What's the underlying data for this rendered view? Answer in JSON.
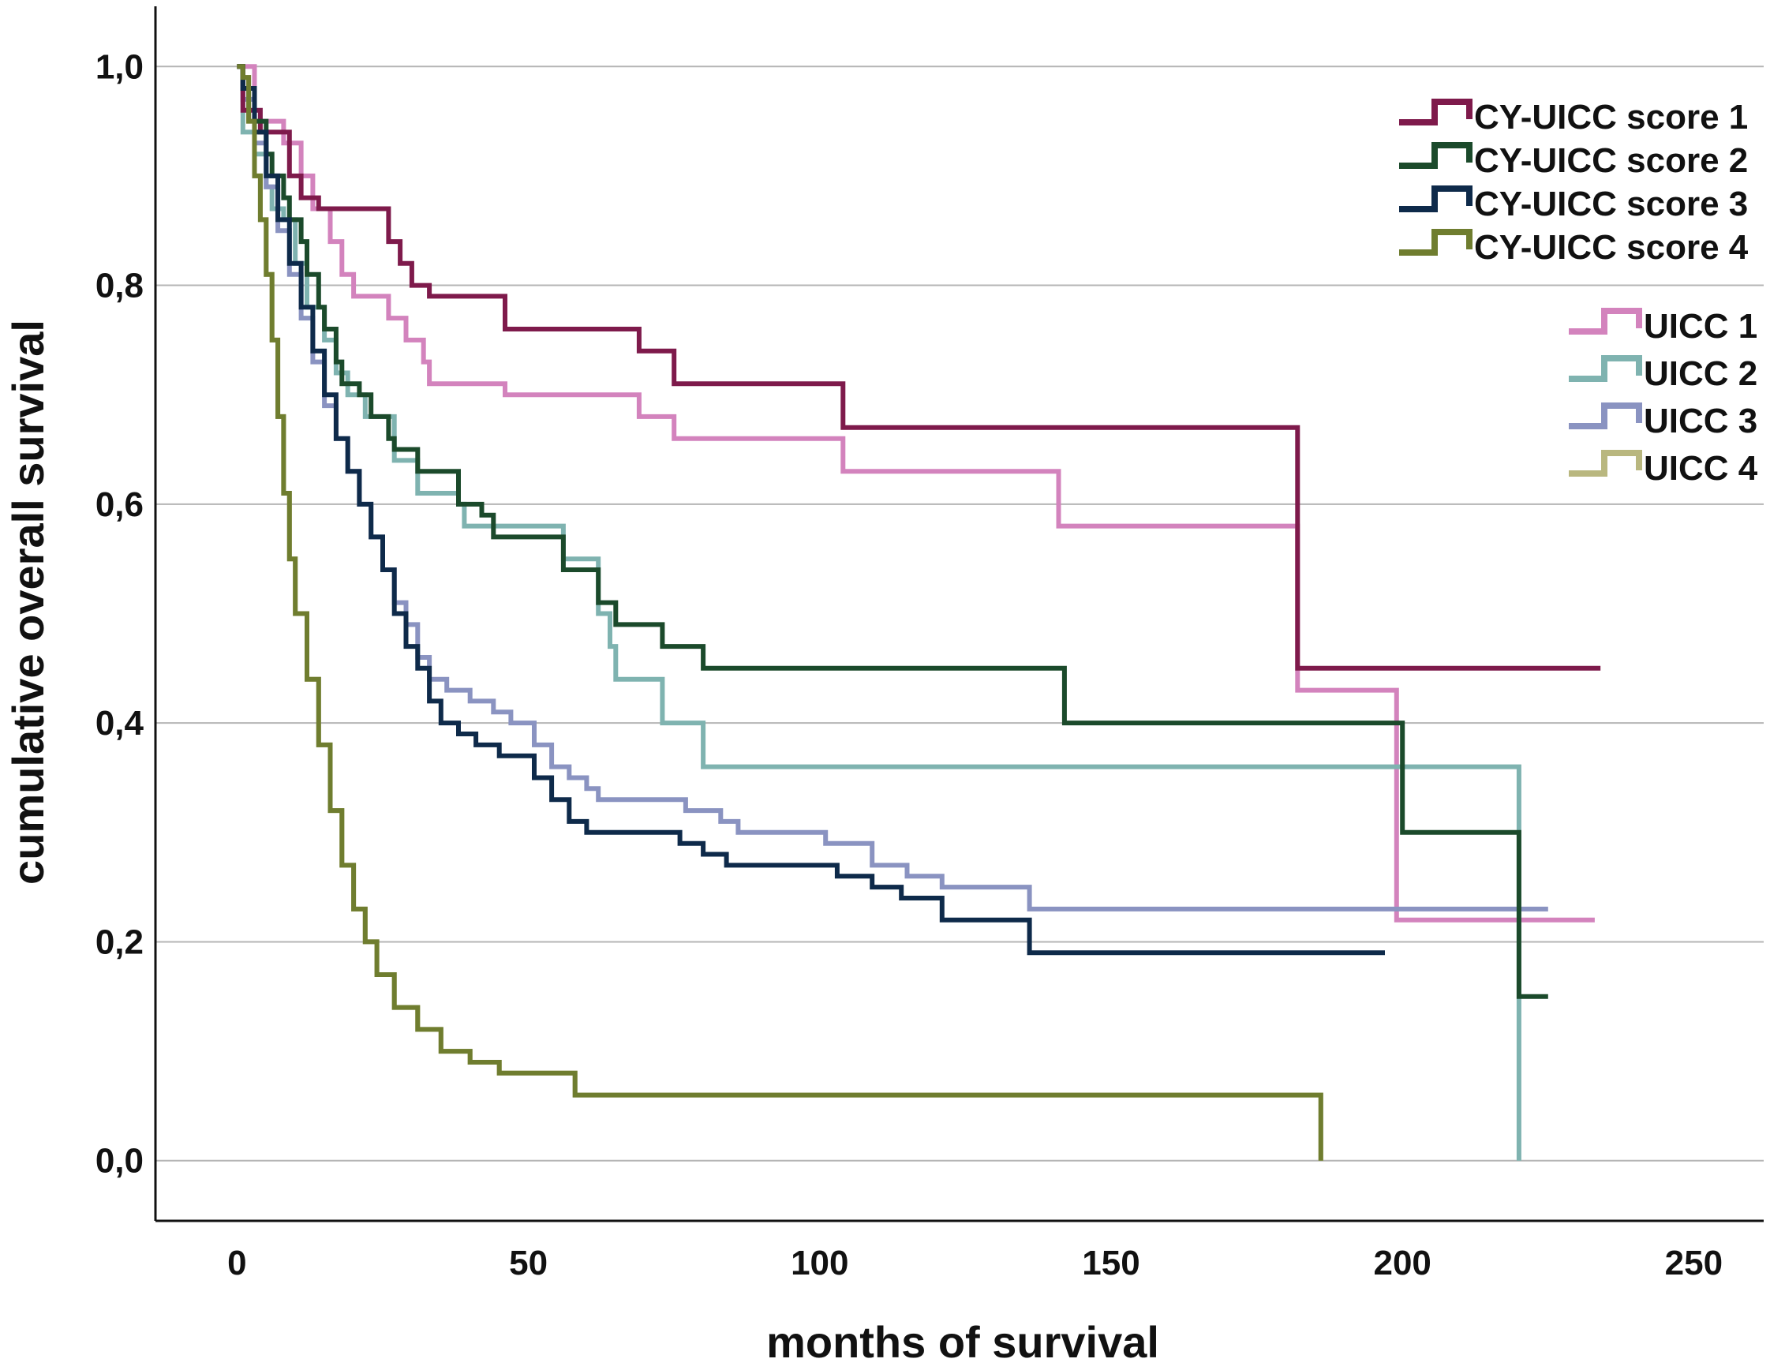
{
  "chart_data": {
    "type": "line",
    "subtype": "kaplan-meier step curves",
    "title": "",
    "xlabel": "months of survival",
    "ylabel": "cumulative overall survival",
    "xlim": [
      -14,
      262
    ],
    "ylim": [
      -0.055,
      1.055
    ],
    "xticks": [
      0,
      50,
      100,
      150,
      200,
      250
    ],
    "xtick_labels": [
      "0",
      "50",
      "100",
      "150",
      "200",
      "250"
    ],
    "yticks": [
      0.0,
      0.2,
      0.4,
      0.6,
      0.8,
      1.0
    ],
    "ytick_labels": [
      "0,0",
      "0,2",
      "0,4",
      "0,6",
      "0,8",
      "1,0"
    ],
    "grid": "horizontal",
    "legend_position": "top-right",
    "series": [
      {
        "name": "UICC 1",
        "color": "#d383bd",
        "points": [
          [
            0,
            1.0
          ],
          [
            3,
            0.95
          ],
          [
            8,
            0.93
          ],
          [
            11,
            0.9
          ],
          [
            13,
            0.87
          ],
          [
            16,
            0.84
          ],
          [
            18,
            0.81
          ],
          [
            20,
            0.79
          ],
          [
            26,
            0.77
          ],
          [
            29,
            0.75
          ],
          [
            32,
            0.73
          ],
          [
            33,
            0.71
          ],
          [
            46,
            0.7
          ],
          [
            52,
            0.7
          ],
          [
            69,
            0.68
          ],
          [
            75,
            0.66
          ],
          [
            104,
            0.63
          ],
          [
            141,
            0.58
          ],
          [
            182,
            0.43
          ],
          [
            199,
            0.22
          ],
          [
            233,
            0.22
          ]
        ]
      },
      {
        "name": "UICC 2",
        "color": "#7fb3b0",
        "points": [
          [
            0,
            1.0
          ],
          [
            1,
            0.94
          ],
          [
            3,
            0.92
          ],
          [
            5,
            0.89
          ],
          [
            6,
            0.87
          ],
          [
            8,
            0.86
          ],
          [
            10,
            0.82
          ],
          [
            12,
            0.78
          ],
          [
            15,
            0.75
          ],
          [
            17,
            0.72
          ],
          [
            19,
            0.7
          ],
          [
            22,
            0.68
          ],
          [
            27,
            0.64
          ],
          [
            31,
            0.61
          ],
          [
            38,
            0.6
          ],
          [
            39,
            0.58
          ],
          [
            55,
            0.58
          ],
          [
            56,
            0.55
          ],
          [
            62,
            0.5
          ],
          [
            64,
            0.47
          ],
          [
            65,
            0.44
          ],
          [
            73,
            0.4
          ],
          [
            80,
            0.36
          ],
          [
            219,
            0.36
          ],
          [
            220,
            0.0
          ]
        ]
      },
      {
        "name": "UICC 3",
        "color": "#8a93c1",
        "points": [
          [
            0,
            1.0
          ],
          [
            1,
            0.97
          ],
          [
            3,
            0.93
          ],
          [
            5,
            0.89
          ],
          [
            7,
            0.85
          ],
          [
            9,
            0.81
          ],
          [
            11,
            0.77
          ],
          [
            13,
            0.73
          ],
          [
            15,
            0.69
          ],
          [
            17,
            0.66
          ],
          [
            19,
            0.63
          ],
          [
            21,
            0.6
          ],
          [
            23,
            0.57
          ],
          [
            25,
            0.54
          ],
          [
            27,
            0.51
          ],
          [
            29,
            0.49
          ],
          [
            31,
            0.46
          ],
          [
            33,
            0.44
          ],
          [
            36,
            0.43
          ],
          [
            40,
            0.42
          ],
          [
            44,
            0.41
          ],
          [
            47,
            0.4
          ],
          [
            51,
            0.38
          ],
          [
            54,
            0.36
          ],
          [
            57,
            0.35
          ],
          [
            60,
            0.34
          ],
          [
            62,
            0.33
          ],
          [
            74,
            0.33
          ],
          [
            77,
            0.32
          ],
          [
            83,
            0.31
          ],
          [
            86,
            0.3
          ],
          [
            101,
            0.29
          ],
          [
            109,
            0.27
          ],
          [
            115,
            0.26
          ],
          [
            121,
            0.25
          ],
          [
            136,
            0.23
          ],
          [
            225,
            0.23
          ]
        ]
      },
      {
        "name": "UICC 4",
        "color": "#b9b77f",
        "points": [
          [
            0,
            1.0
          ],
          [
            1,
            0.99
          ],
          [
            2,
            0.95
          ],
          [
            3,
            0.9
          ],
          [
            4,
            0.86
          ],
          [
            5,
            0.81
          ],
          [
            6,
            0.75
          ],
          [
            7,
            0.68
          ],
          [
            8,
            0.61
          ],
          [
            9,
            0.55
          ],
          [
            10,
            0.5
          ],
          [
            12,
            0.44
          ],
          [
            14,
            0.38
          ],
          [
            16,
            0.32
          ],
          [
            18,
            0.27
          ],
          [
            20,
            0.23
          ],
          [
            22,
            0.2
          ],
          [
            24,
            0.17
          ],
          [
            27,
            0.14
          ],
          [
            31,
            0.12
          ],
          [
            35,
            0.1
          ],
          [
            40,
            0.09
          ],
          [
            45,
            0.08
          ],
          [
            58,
            0.06
          ],
          [
            185,
            0.06
          ],
          [
            186,
            0.0
          ]
        ]
      },
      {
        "name": "CY-UICC score 1",
        "color": "#7e1a4b",
        "points": [
          [
            0,
            1.0
          ],
          [
            1,
            0.96
          ],
          [
            4,
            0.94
          ],
          [
            9,
            0.9
          ],
          [
            11,
            0.88
          ],
          [
            14,
            0.87
          ],
          [
            26,
            0.84
          ],
          [
            28,
            0.82
          ],
          [
            30,
            0.8
          ],
          [
            33,
            0.79
          ],
          [
            46,
            0.76
          ],
          [
            55,
            0.76
          ],
          [
            69,
            0.74
          ],
          [
            75,
            0.71
          ],
          [
            104,
            0.67
          ],
          [
            182,
            0.45
          ],
          [
            234,
            0.45
          ]
        ]
      },
      {
        "name": "CY-UICC score 2",
        "color": "#1b4a2b",
        "points": [
          [
            0,
            1.0
          ],
          [
            1,
            0.98
          ],
          [
            3,
            0.95
          ],
          [
            5,
            0.92
          ],
          [
            6,
            0.9
          ],
          [
            8,
            0.88
          ],
          [
            9,
            0.86
          ],
          [
            11,
            0.84
          ],
          [
            12,
            0.81
          ],
          [
            14,
            0.78
          ],
          [
            15,
            0.76
          ],
          [
            17,
            0.73
          ],
          [
            18,
            0.71
          ],
          [
            21,
            0.7
          ],
          [
            23,
            0.68
          ],
          [
            26,
            0.66
          ],
          [
            27,
            0.65
          ],
          [
            31,
            0.63
          ],
          [
            38,
            0.6
          ],
          [
            42,
            0.59
          ],
          [
            44,
            0.57
          ],
          [
            55,
            0.57
          ],
          [
            56,
            0.54
          ],
          [
            62,
            0.51
          ],
          [
            65,
            0.49
          ],
          [
            73,
            0.47
          ],
          [
            80,
            0.45
          ],
          [
            141,
            0.45
          ],
          [
            142,
            0.4
          ],
          [
            200,
            0.3
          ],
          [
            220,
            0.15
          ],
          [
            225,
            0.15
          ]
        ]
      },
      {
        "name": "CY-UICC score 3",
        "color": "#0e2a4a",
        "points": [
          [
            0,
            1.0
          ],
          [
            1,
            0.98
          ],
          [
            3,
            0.94
          ],
          [
            5,
            0.9
          ],
          [
            7,
            0.86
          ],
          [
            9,
            0.82
          ],
          [
            11,
            0.78
          ],
          [
            13,
            0.74
          ],
          [
            15,
            0.7
          ],
          [
            17,
            0.66
          ],
          [
            19,
            0.63
          ],
          [
            21,
            0.6
          ],
          [
            23,
            0.57
          ],
          [
            25,
            0.54
          ],
          [
            27,
            0.5
          ],
          [
            29,
            0.47
          ],
          [
            31,
            0.45
          ],
          [
            33,
            0.42
          ],
          [
            35,
            0.4
          ],
          [
            38,
            0.39
          ],
          [
            41,
            0.38
          ],
          [
            45,
            0.37
          ],
          [
            51,
            0.35
          ],
          [
            54,
            0.33
          ],
          [
            57,
            0.31
          ],
          [
            60,
            0.3
          ],
          [
            76,
            0.29
          ],
          [
            80,
            0.28
          ],
          [
            84,
            0.27
          ],
          [
            103,
            0.26
          ],
          [
            109,
            0.25
          ],
          [
            114,
            0.24
          ],
          [
            121,
            0.22
          ],
          [
            136,
            0.19
          ],
          [
            197,
            0.19
          ]
        ]
      }
    ],
    "legend": [
      {
        "name": "CY-UICC score 1",
        "color": "#7e1a4b"
      },
      {
        "name": "CY-UICC score 2",
        "color": "#1b4a2b"
      },
      {
        "name": "CY-UICC score 3",
        "color": "#0e2a4a"
      },
      {
        "name": "CY-UICC score 4",
        "color": "#6f7d2f"
      },
      {
        "name": "UICC 1",
        "color": "#d383bd"
      },
      {
        "name": "UICC 2",
        "color": "#7fb3b0"
      },
      {
        "name": "UICC 3",
        "color": "#8a93c1"
      },
      {
        "name": "UICC 4",
        "color": "#b9b77f"
      }
    ],
    "overlay_series": {
      "name": "CY-UICC score 4",
      "color": "#6f7d2f",
      "same_as": "UICC 4"
    }
  }
}
